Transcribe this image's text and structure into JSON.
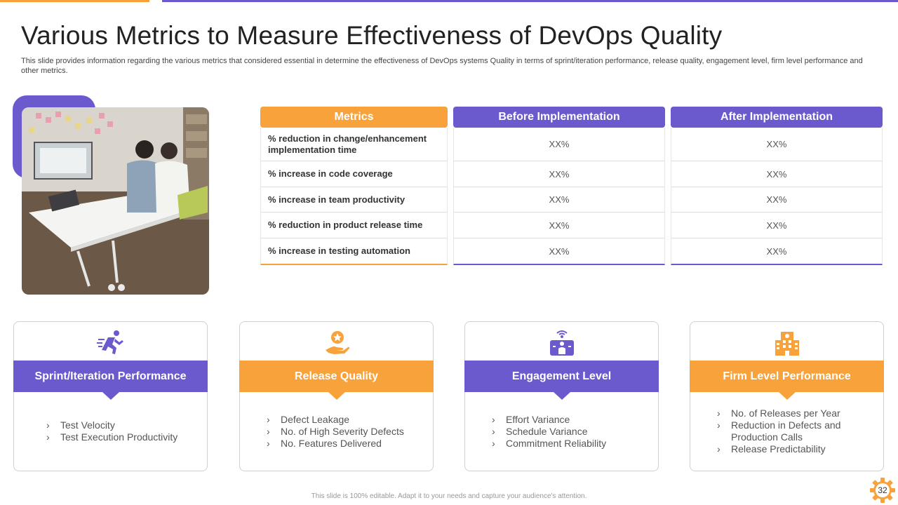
{
  "header": {
    "title": "Various Metrics to Measure Effectiveness of DevOps Quality",
    "subtitle": "This slide provides information regarding the various metrics that considered essential in determine the effectiveness of DevOps  systems Quality in terms of sprint/iteration performance, release quality, engagement level, firm level performance and other metrics."
  },
  "table": {
    "headers": [
      "Metrics",
      "Before Implementation",
      "After Implementation"
    ],
    "rows": [
      {
        "metric": "% reduction  in change/enhancement implementation time",
        "before": "XX%",
        "after": "XX%"
      },
      {
        "metric": "% increase in code coverage",
        "before": "XX%",
        "after": "XX%"
      },
      {
        "metric": "% increase in team productivity",
        "before": "XX%",
        "after": "XX%"
      },
      {
        "metric": "% reduction  in product  release time",
        "before": "XX%",
        "after": "XX%"
      },
      {
        "metric": "% increase in testing  automation",
        "before": "XX%",
        "after": "XX%"
      }
    ]
  },
  "cards": [
    {
      "title": "Sprint/Iteration  Performance",
      "icon": "running-person-icon",
      "items": [
        "Test Velocity",
        "Test Execution Productivity"
      ]
    },
    {
      "title": "Release Quality",
      "icon": "star-hand-icon",
      "items": [
        "Defect Leakage",
        "No. of High  Severity Defects",
        "No.  Features Delivered"
      ]
    },
    {
      "title": "Engagement Level",
      "icon": "engagement-person-icon",
      "items": [
        "Effort Variance",
        "Schedule Variance",
        "Commitment Reliability"
      ]
    },
    {
      "title": "Firm Level Performance",
      "icon": "building-icon",
      "items": [
        "No.  of Releases per Year",
        "Reduction in Defects and Production Calls",
        "Release Predictability"
      ]
    }
  ],
  "footer": {
    "note": "This slide is 100% editable.  Adapt it to your needs and capture your audience's attention.",
    "page_number": "32"
  },
  "colors": {
    "orange": "#F7A23B",
    "purple": "#6A5ACD"
  }
}
